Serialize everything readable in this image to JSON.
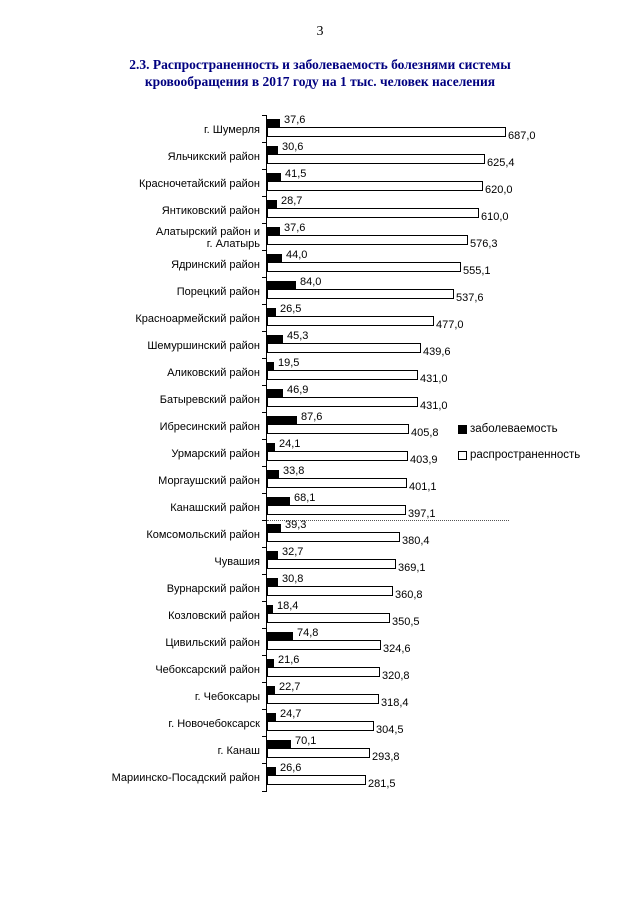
{
  "page": {
    "number": "3"
  },
  "title": {
    "line1": "2.3. Распространенность и заболеваемость болезнями системы",
    "line2": "кровообращения в 2017 году на 1 тыс. человек населения",
    "color": "#000080"
  },
  "chart_data": {
    "type": "bar",
    "orientation": "horizontal",
    "title": "2.3. Распространенность и заболеваемость болезнями системы кровообращения в 2017 году на 1 тыс. человек населения",
    "categories": [
      "г. Шумерля",
      "Яльчикский район",
      "Красночетайский район",
      "Янтиковский район",
      "Алатырский район и\nг. Алатырь",
      "Ядринский район",
      "Порецкий район",
      "Красноармейский район",
      "Шемуршинский район",
      "Аликовский район",
      "Батыревский район",
      "Ибресинский район",
      "Урмарский район",
      "Моргаушский район",
      "Канашский район",
      "Комсомольский район",
      "Чувашия",
      "Вурнарский район",
      "Козловский район",
      "Цивильский район",
      "Чебоксарский район",
      "г. Чебоксары",
      "г. Новочебоксарск",
      "г. Канаш",
      "Мариинско-Посадский район"
    ],
    "series": [
      {
        "name": "заболеваемость",
        "color": "#000000",
        "values": [
          37.6,
          30.6,
          41.5,
          28.7,
          37.6,
          44.0,
          84.0,
          26.5,
          45.3,
          19.5,
          46.9,
          87.6,
          24.1,
          33.8,
          68.1,
          39.3,
          32.7,
          30.8,
          18.4,
          74.8,
          21.6,
          22.7,
          24.7,
          70.1,
          26.6
        ]
      },
      {
        "name": "распространенность",
        "color": "#FFFFFF",
        "border_color": "#000000",
        "values": [
          687.0,
          625.4,
          620.0,
          610.0,
          576.3,
          555.1,
          537.6,
          477.0,
          439.6,
          431.0,
          431.0,
          405.8,
          403.9,
          401.1,
          397.1,
          380.4,
          369.1,
          360.8,
          350.5,
          324.6,
          320.8,
          318.4,
          304.5,
          293.8,
          281.5
        ]
      }
    ],
    "value_labels": true,
    "decimal_separator": ",",
    "legend_position": "right-middle",
    "xlim": [
      0,
      700
    ],
    "xlabel": "",
    "ylabel": "",
    "grid": false,
    "dotted_gridline_row": 14
  }
}
